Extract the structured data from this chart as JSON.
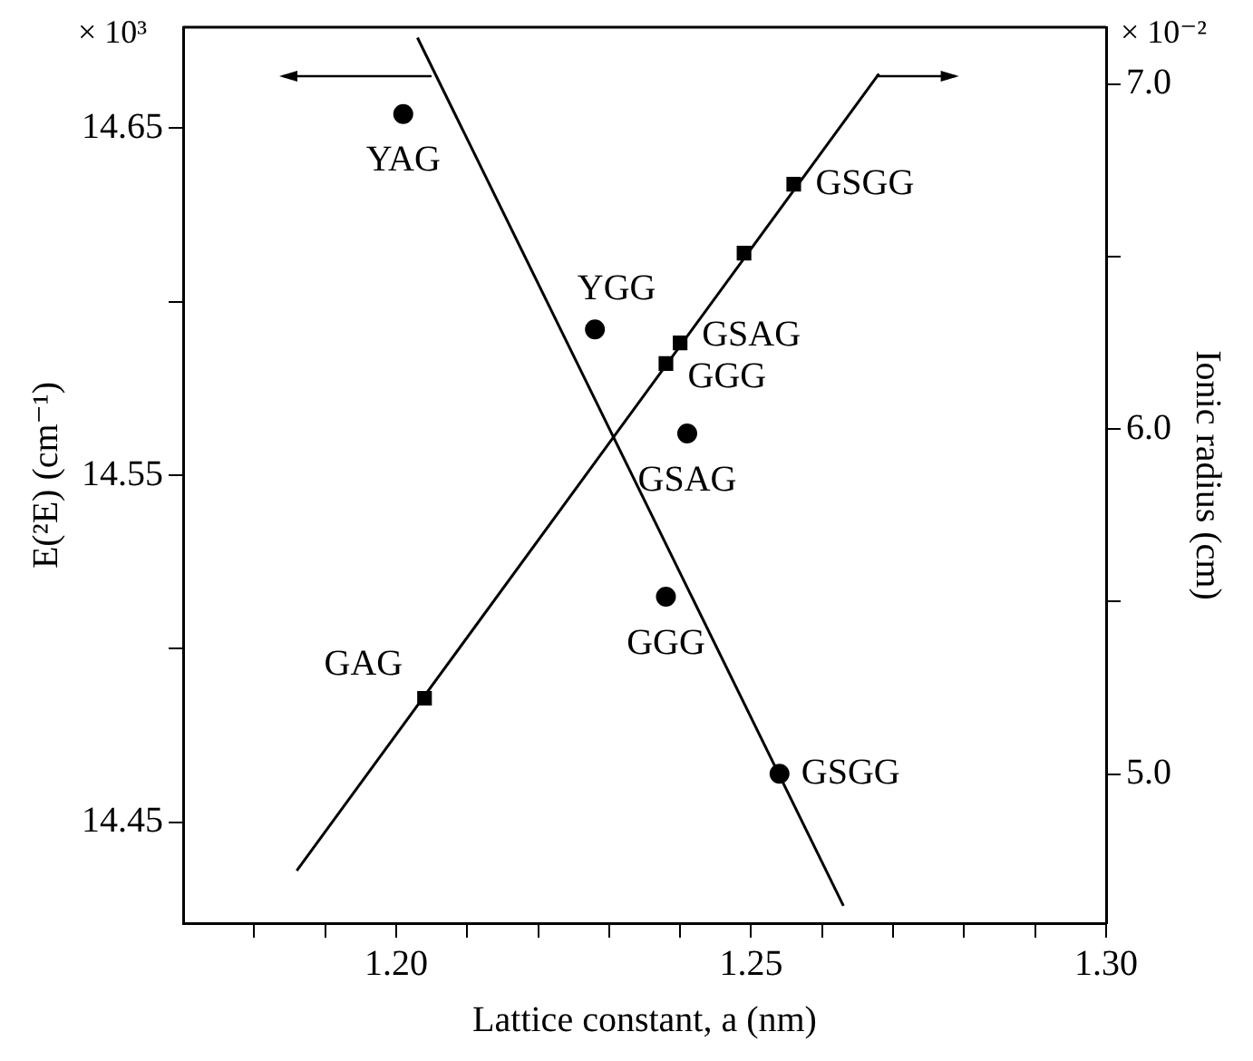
{
  "chart_data": {
    "type": "scatter",
    "xlabel": "Lattice constant, a (nm)",
    "ylabel": "E(²E) (cm⁻¹)",
    "y2label": "Ionic radius (cm)",
    "annotations": [
      "× 10³",
      "× 10⁻²"
    ],
    "xlim": [
      1.17,
      1.3
    ],
    "xticks": [
      {
        "value": 1.18,
        "label": null
      },
      {
        "value": 1.19,
        "label": null
      },
      {
        "value": 1.2,
        "label": "1.20"
      },
      {
        "value": 1.21,
        "label": null
      },
      {
        "value": 1.22,
        "label": null
      },
      {
        "value": 1.23,
        "label": null
      },
      {
        "value": 1.24,
        "label": null
      },
      1.25,
      {
        "value": 1.26,
        "label": null
      },
      {
        "value": 1.27,
        "label": null
      },
      {
        "value": 1.28,
        "label": null
      },
      {
        "value": 1.29,
        "label": null
      },
      {
        "value": 1.3,
        "label": "1.30"
      }
    ],
    "ylim": [
      14.421,
      14.679
    ],
    "yticks": [
      14.45,
      {
        "value": 14.5,
        "label": null
      },
      14.55,
      {
        "value": 14.6,
        "label": null
      },
      14.65
    ],
    "y2lim": [
      4.568,
      7.165
    ],
    "y2ticks": [
      {
        "value": 5,
        "label": "5.0"
      },
      {
        "value": 5.5,
        "label": null
      },
      {
        "value": 6,
        "label": "6.0"
      },
      {
        "value": 6.5,
        "label": null
      },
      {
        "value": 7,
        "label": "7.0"
      }
    ],
    "grid": false,
    "legend": false,
    "series": [
      {
        "type": "scatter",
        "marker": "circle",
        "color": "#000000",
        "x": [
          1.201,
          1.228,
          1.241,
          1.238,
          1.254
        ],
        "values": [
          14.654,
          14.592,
          14.562,
          14.515,
          14.464
        ],
        "value_labels": [
          "YAG",
          "YGG",
          "GSAG",
          "GGG",
          "GSGG"
        ]
      },
      {
        "type": "scatter",
        "marker": "square",
        "axis": "y2",
        "color": "#000000",
        "x": [
          1.256,
          1.249,
          1.24,
          1.238,
          1.204
        ],
        "values": [
          6.71,
          6.51,
          6.25,
          6.19,
          5.22
        ],
        "value_labels": [
          "GSGG",
          null,
          "GSAG",
          "GGG",
          "GAG"
        ]
      },
      {
        "type": "line",
        "marker": "none",
        "color": "#000000",
        "x": [
          1.203,
          1.263
        ],
        "values": [
          14.676,
          14.426
        ]
      },
      {
        "type": "line",
        "marker": "none",
        "axis": "y2",
        "color": "#000000",
        "x": [
          1.186,
          1.268
        ],
        "values": [
          4.72,
          7.03
        ]
      }
    ]
  }
}
